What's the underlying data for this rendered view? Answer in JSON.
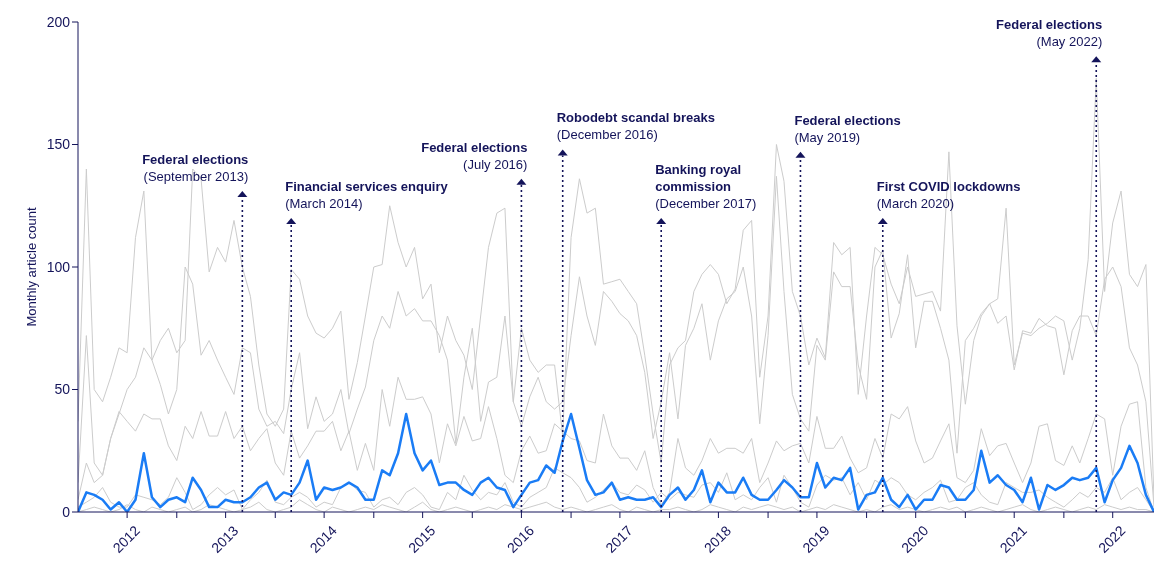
{
  "chart_data": {
    "type": "line",
    "ylabel": "Monthly article count",
    "x": [
      "2012-01",
      "2012-02",
      "2012-03",
      "2012-04",
      "2012-05",
      "2012-06",
      "2012-07",
      "2012-08",
      "2012-09",
      "2012-10",
      "2012-11",
      "2012-12",
      "2013-01",
      "2013-02",
      "2013-03",
      "2013-04",
      "2013-05",
      "2013-06",
      "2013-07",
      "2013-08",
      "2013-09",
      "2013-10",
      "2013-11",
      "2013-12",
      "2014-01",
      "2014-02",
      "2014-03",
      "2014-04",
      "2014-05",
      "2014-06",
      "2014-07",
      "2014-08",
      "2014-09",
      "2014-10",
      "2014-11",
      "2014-12",
      "2015-01",
      "2015-02",
      "2015-03",
      "2015-04",
      "2015-05",
      "2015-06",
      "2015-07",
      "2015-08",
      "2015-09",
      "2015-10",
      "2015-11",
      "2015-12",
      "2016-01",
      "2016-02",
      "2016-03",
      "2016-04",
      "2016-05",
      "2016-06",
      "2016-07",
      "2016-08",
      "2016-09",
      "2016-10",
      "2016-11",
      "2016-12",
      "2017-01",
      "2017-02",
      "2017-03",
      "2017-04",
      "2017-05",
      "2017-06",
      "2017-07",
      "2017-08",
      "2017-09",
      "2017-10",
      "2017-11",
      "2017-12",
      "2018-01",
      "2018-02",
      "2018-03",
      "2018-04",
      "2018-05",
      "2018-06",
      "2018-07",
      "2018-08",
      "2018-09",
      "2018-10",
      "2018-11",
      "2018-12",
      "2019-01",
      "2019-02",
      "2019-03",
      "2019-04",
      "2019-05",
      "2019-06",
      "2019-07",
      "2019-08",
      "2019-09",
      "2019-10",
      "2019-11",
      "2019-12",
      "2020-01",
      "2020-02",
      "2020-03",
      "2020-04",
      "2020-05",
      "2020-06",
      "2020-07",
      "2020-08",
      "2020-09",
      "2020-10",
      "2020-11",
      "2020-12",
      "2021-01",
      "2021-02",
      "2021-03",
      "2021-04",
      "2021-05",
      "2021-06",
      "2021-07",
      "2021-08",
      "2021-09",
      "2021-10",
      "2021-11",
      "2021-12",
      "2022-01",
      "2022-02",
      "2022-03",
      "2022-04",
      "2022-05",
      "2022-06",
      "2022-07",
      "2022-08",
      "2022-09",
      "2022-10",
      "2022-11",
      "2022-12"
    ],
    "series": [
      {
        "color": "#cccccc",
        "values": [
          37,
          140,
          50,
          45,
          55,
          67,
          65,
          112,
          131,
          62,
          70,
          75,
          65,
          70,
          140,
          136,
          98,
          108,
          102,
          119,
          100,
          88,
          60,
          40,
          35,
          42,
          99,
          95,
          80,
          73,
          71,
          75,
          82,
          46,
          61,
          80,
          100,
          101,
          125,
          110,
          100,
          108,
          87,
          93,
          65,
          80,
          70,
          64,
          50,
          80,
          108,
          122,
          124,
          45,
          75,
          62,
          57,
          60,
          60,
          31,
          112,
          136,
          122,
          124,
          93,
          94,
          95,
          90,
          85,
          64,
          40,
          20,
          60,
          67,
          70,
          90,
          97,
          101,
          97,
          85,
          91,
          115,
          119,
          55,
          80,
          150,
          135,
          90,
          80,
          60,
          71,
          63,
          110,
          105,
          108,
          48,
          80,
          108,
          105,
          93,
          85,
          100,
          88,
          89,
          90,
          82,
          147,
          76,
          44,
          70,
          80,
          85,
          87,
          124,
          60,
          73,
          72,
          75,
          77,
          80,
          78,
          62,
          75,
          103,
          177,
          90,
          118,
          131,
          97,
          92,
          101,
          5
        ]
      },
      {
        "color": "#cccccc",
        "values": [
          12,
          72,
          20,
          15,
          30,
          40,
          50,
          55,
          67,
          62,
          52,
          40,
          50,
          100,
          93,
          64,
          70,
          62,
          55,
          48,
          67,
          65,
          42,
          35,
          37,
          32,
          50,
          65,
          34,
          47,
          37,
          40,
          50,
          32,
          42,
          51,
          70,
          80,
          75,
          90,
          80,
          83,
          78,
          78,
          72,
          62,
          28,
          55,
          75,
          37,
          53,
          55,
          80,
          45,
          35,
          47,
          55,
          45,
          42,
          45,
          72,
          96,
          80,
          68,
          90,
          86,
          81,
          78,
          72,
          57,
          30,
          45,
          65,
          38,
          68,
          75,
          85,
          62,
          78,
          87,
          90,
          100,
          80,
          36,
          72,
          137,
          90,
          48,
          38,
          33,
          68,
          62,
          98,
          92,
          92,
          60,
          46,
          100,
          107,
          71,
          81,
          105,
          67,
          86,
          86,
          75,
          62,
          24,
          70,
          75,
          81,
          85,
          77,
          80,
          58,
          74,
          73,
          79,
          76,
          75,
          56,
          74,
          80,
          80,
          72,
          95,
          100,
          92,
          67,
          60,
          45,
          2
        ]
      },
      {
        "color": "#cccccc",
        "values": [
          5,
          20,
          12,
          15,
          30,
          41,
          37,
          33,
          40,
          38,
          38,
          27,
          21,
          35,
          30,
          41,
          31,
          31,
          41,
          30,
          35,
          25,
          30,
          34,
          20,
          15,
          33,
          22,
          27,
          33,
          33,
          37,
          25,
          33,
          17,
          28,
          17,
          50,
          35,
          55,
          46,
          46,
          47,
          40,
          20,
          36,
          27,
          39,
          29,
          30,
          43,
          30,
          15,
          12,
          25,
          31,
          24,
          25,
          36,
          33,
          30,
          29,
          21,
          20,
          40,
          27,
          22,
          22,
          17,
          25,
          10,
          3,
          8,
          30,
          18,
          15,
          21,
          30,
          24,
          26,
          26,
          24,
          30,
          12,
          20,
          29,
          25,
          27,
          28,
          20,
          39,
          26,
          26,
          31,
          22,
          16,
          18,
          30,
          22,
          40,
          38,
          43,
          29,
          20,
          22,
          29,
          36,
          14,
          12,
          17,
          34,
          23,
          27,
          28,
          20,
          12,
          20,
          35,
          36,
          21,
          19,
          27,
          20,
          30,
          40,
          38,
          15,
          35,
          44,
          45,
          10,
          0
        ]
      },
      {
        "color": "#cccccc",
        "values": [
          2,
          4,
          6,
          10,
          4,
          2,
          2,
          7,
          6,
          5,
          3,
          6,
          14,
          8,
          1,
          3,
          7,
          10,
          7,
          9,
          1,
          5,
          8,
          13,
          4,
          3,
          6,
          8,
          6,
          2,
          4,
          3,
          10,
          12,
          9,
          8,
          2,
          5,
          6,
          3,
          8,
          10,
          7,
          2,
          1,
          8,
          5,
          15,
          9,
          5,
          8,
          7,
          12,
          4,
          2,
          6,
          8,
          10,
          18,
          16,
          14,
          10,
          4,
          6,
          9,
          12,
          8,
          7,
          11,
          9,
          4,
          8,
          5,
          8,
          7,
          6,
          11,
          12,
          8,
          16,
          5,
          7,
          5,
          10,
          14,
          4,
          15,
          10,
          4,
          2,
          11,
          15,
          13,
          14,
          7,
          12,
          5,
          13,
          11,
          14,
          12,
          7,
          5,
          8,
          10,
          13,
          4,
          5,
          10,
          12,
          7,
          4,
          3,
          12,
          10,
          8,
          8,
          9,
          6,
          4,
          2,
          5,
          8,
          6,
          10,
          8,
          14,
          5,
          8,
          10,
          5,
          0
        ]
      },
      {
        "color": "#cccccc",
        "values": [
          0,
          1,
          2,
          1,
          0,
          1,
          3,
          1,
          0,
          2,
          1,
          0,
          1,
          2,
          0,
          1,
          3,
          2,
          1,
          0,
          1,
          2,
          4,
          1,
          0,
          1,
          2,
          5,
          3,
          1,
          0,
          2,
          1,
          0,
          1,
          2,
          1,
          3,
          2,
          1,
          0,
          2,
          4,
          1,
          0,
          1,
          2,
          1,
          0,
          1,
          2,
          1,
          3,
          2,
          1,
          2,
          3,
          4,
          2,
          1,
          2,
          1,
          0,
          1,
          2,
          3,
          1,
          0,
          2,
          1,
          0,
          1,
          1,
          2,
          1,
          0,
          1,
          3,
          2,
          1,
          0,
          2,
          1,
          2,
          3,
          2,
          1,
          2,
          0,
          1,
          2,
          1,
          3,
          2,
          1,
          0,
          1,
          0,
          2,
          3,
          1,
          2,
          1,
          0,
          1,
          2,
          1,
          2,
          0,
          1,
          2,
          1,
          0,
          1,
          2,
          3,
          1,
          0,
          1,
          2,
          1,
          0,
          1,
          2,
          1,
          3,
          2,
          1,
          2,
          1,
          1,
          0
        ]
      },
      {
        "color": "#1a7cf5",
        "values": [
          0,
          8,
          7,
          5,
          1,
          4,
          0,
          5,
          24,
          6,
          2,
          5,
          6,
          4,
          14,
          9,
          2,
          2,
          5,
          4,
          4,
          6,
          10,
          12,
          5,
          8,
          7,
          12,
          21,
          5,
          10,
          9,
          10,
          12,
          10,
          5,
          5,
          17,
          15,
          24,
          40,
          24,
          17,
          21,
          11,
          12,
          12,
          9,
          7,
          12,
          14,
          10,
          9,
          2,
          7,
          12,
          13,
          19,
          16,
          29,
          40,
          26,
          13,
          7,
          8,
          12,
          5,
          6,
          5,
          5,
          6,
          2,
          7,
          10,
          5,
          9,
          17,
          4,
          12,
          8,
          8,
          14,
          7,
          5,
          5,
          9,
          13,
          10,
          6,
          6,
          20,
          10,
          14,
          13,
          18,
          1,
          7,
          8,
          14,
          5,
          2,
          7,
          1,
          5,
          5,
          11,
          10,
          5,
          5,
          9,
          25,
          12,
          15,
          11,
          9,
          4,
          14,
          1,
          11,
          9,
          11,
          14,
          13,
          14,
          18,
          4,
          13,
          18,
          27,
          20,
          7,
          0
        ]
      }
    ],
    "xlim": [
      "2012-01",
      "2022-12"
    ],
    "xticks": [
      {
        "value": "2012-07",
        "label": "2012"
      },
      {
        "value": "2013-01",
        "label": null
      },
      {
        "value": "2013-07",
        "label": "2013"
      },
      {
        "value": "2014-01",
        "label": null
      },
      {
        "value": "2014-07",
        "label": "2014"
      },
      {
        "value": "2015-01",
        "label": null
      },
      {
        "value": "2015-07",
        "label": "2015"
      },
      {
        "value": "2016-01",
        "label": null
      },
      {
        "value": "2016-07",
        "label": "2016"
      },
      {
        "value": "2017-01",
        "label": null
      },
      {
        "value": "2017-07",
        "label": "2017"
      },
      {
        "value": "2018-01",
        "label": null
      },
      {
        "value": "2018-07",
        "label": "2018"
      },
      {
        "value": "2019-01",
        "label": null
      },
      {
        "value": "2019-07",
        "label": "2019"
      },
      {
        "value": "2020-01",
        "label": null
      },
      {
        "value": "2020-07",
        "label": "2020"
      },
      {
        "value": "2021-01",
        "label": null
      },
      {
        "value": "2021-07",
        "label": "2021"
      },
      {
        "value": "2022-01",
        "label": null
      },
      {
        "value": "2022-07",
        "label": "2022"
      }
    ],
    "ylim": [
      0,
      200
    ],
    "yticks": [
      0,
      50,
      100,
      150,
      200
    ],
    "ref_lines": [
      {
        "axis": "x",
        "value": "2013-09",
        "label": "Federal elections\n(September 2013)",
        "color": "#14145a",
        "line_style": "dotted"
      },
      {
        "axis": "x",
        "value": "2014-03",
        "label": "Financial services enquiry\n(March 2014)",
        "color": "#14145a",
        "line_style": "dotted"
      },
      {
        "axis": "x",
        "value": "2016-07",
        "label": "Federal elections\n(July 2016)",
        "color": "#14145a",
        "line_style": "dotted"
      },
      {
        "axis": "x",
        "value": "2016-12",
        "label": "Robodebt scandal breaks\n(December 2016)",
        "color": "#14145a",
        "line_style": "dotted"
      },
      {
        "axis": "x",
        "value": "2017-12",
        "label": "Banking royal\ncommission\n(December 2017)",
        "color": "#14145a",
        "line_style": "dotted"
      },
      {
        "axis": "x",
        "value": "2019-05",
        "label": "Federal elections\n(May 2019)",
        "color": "#14145a",
        "line_style": "dotted"
      },
      {
        "axis": "x",
        "value": "2020-03",
        "label": "First COVID lockdowns\n(March 2020)",
        "color": "#14145a",
        "line_style": "dotted"
      },
      {
        "axis": "x",
        "value": "2022-05",
        "label": "Federal elections\n(May 2022)",
        "color": "#14145a",
        "line_style": "dotted"
      }
    ]
  }
}
